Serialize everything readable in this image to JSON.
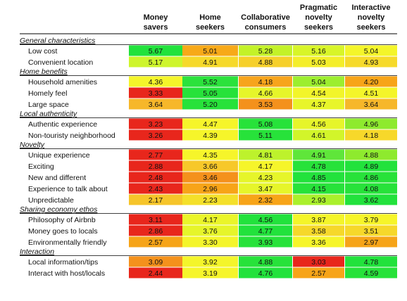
{
  "chart_data": {
    "type": "heatmap",
    "columns": [
      [
        "Money",
        "savers"
      ],
      [
        "Home",
        "seekers"
      ],
      [
        "Collaborative",
        "consumers"
      ],
      [
        "Pragmatic",
        "novelty",
        "seekers"
      ],
      [
        "Interactive",
        "novelty",
        "seekers"
      ]
    ],
    "groups": [
      {
        "title": "General characteristics",
        "rows": [
          {
            "label": "Low cost",
            "values": [
              "5.67",
              "5.01",
              "5.28",
              "5.16",
              "5.04"
            ],
            "colors": [
              "#22e23c",
              "#f7a918",
              "#c3f228",
              "#d8f528",
              "#f4f52a"
            ]
          },
          {
            "label": "Convenient location",
            "values": [
              "5.17",
              "4.91",
              "4.88",
              "5.03",
              "4.93"
            ],
            "colors": [
              "#cef52c",
              "#f6d92a",
              "#f6d02a",
              "#f4ee2a",
              "#f6da2a"
            ]
          }
        ]
      },
      {
        "title": "Home benefits",
        "rows": [
          {
            "label": "Household amenities",
            "values": [
              "4.36",
              "5.52",
              "4.18",
              "5.04",
              "4.20"
            ],
            "colors": [
              "#f4f52a",
              "#2be23c",
              "#f7a41c",
              "#9cee2e",
              "#f7a418"
            ]
          },
          {
            "label": "Homely feel",
            "values": [
              "3.33",
              "5.05",
              "4.66",
              "4.54",
              "4.51"
            ],
            "colors": [
              "#e8261c",
              "#27e23a",
              "#e6f52a",
              "#f2f52a",
              "#f4f52a"
            ]
          },
          {
            "label": "Large space",
            "values": [
              "3.64",
              "5.20",
              "3.53",
              "4.37",
              "3.64"
            ],
            "colors": [
              "#f6b72a",
              "#27e23a",
              "#f4911c",
              "#e8f52a",
              "#f6b72a"
            ]
          }
        ]
      },
      {
        "title": "Local authenticity",
        "rows": [
          {
            "label": "Authentic experience",
            "values": [
              "3.23",
              "4.47",
              "5.08",
              "4.56",
              "4.96"
            ],
            "colors": [
              "#e8261c",
              "#f6f52a",
              "#27e23a",
              "#e6f52a",
              "#8eea2e"
            ]
          },
          {
            "label": "Non-touristy neighborhood",
            "values": [
              "3.26",
              "4.39",
              "5.11",
              "4.61",
              "4.18"
            ],
            "colors": [
              "#e8261c",
              "#f6f52a",
              "#27e23a",
              "#d2f52a",
              "#f7d82a"
            ]
          }
        ]
      },
      {
        "title": "Novelty",
        "rows": [
          {
            "label": "Unique experience",
            "values": [
              "2.77",
              "4.35",
              "4.81",
              "4.91",
              "4.88"
            ],
            "colors": [
              "#e8261c",
              "#f6f52a",
              "#bdf22c",
              "#5fe63a",
              "#8eea2e"
            ]
          },
          {
            "label": "Exciting",
            "values": [
              "2.88",
              "3.66",
              "4.17",
              "4.78",
              "4.89"
            ],
            "colors": [
              "#e8261c",
              "#f7c82a",
              "#f6f52a",
              "#27e23a",
              "#22e23c"
            ]
          },
          {
            "label": "New and different",
            "values": [
              "2.48",
              "3.46",
              "4.23",
              "4.85",
              "4.86"
            ],
            "colors": [
              "#e8261c",
              "#f4911c",
              "#e6f52a",
              "#22e23c",
              "#27e23a"
            ]
          },
          {
            "label": "Experience to talk about",
            "values": [
              "2.43",
              "2.96",
              "3.47",
              "4.15",
              "4.08"
            ],
            "colors": [
              "#e8261c",
              "#f7a418",
              "#e6f52a",
              "#27e23a",
              "#27e23a"
            ]
          },
          {
            "label": "Unpredictable",
            "values": [
              "2.17",
              "2.23",
              "2.32",
              "2.93",
              "3.62"
            ],
            "colors": [
              "#f6c52a",
              "#f4e02a",
              "#f7a418",
              "#aaf02c",
              "#22e23c"
            ]
          }
        ]
      },
      {
        "title": "Sharing economy ethos",
        "rows": [
          {
            "label": "Philosophy of Airbnb",
            "values": [
              "3.11",
              "4.17",
              "4.56",
              "3.87",
              "3.79"
            ],
            "colors": [
              "#e8261c",
              "#eaf52a",
              "#22e23c",
              "#f4f52a",
              "#f6f52a"
            ]
          },
          {
            "label": "Money goes to locals",
            "values": [
              "2.86",
              "3.76",
              "4.77",
              "3.58",
              "3.51"
            ],
            "colors": [
              "#e8261c",
              "#e6f52a",
              "#22e23c",
              "#f6d82a",
              "#f6d82a"
            ]
          },
          {
            "label": "Environmentally friendly",
            "values": [
              "2.57",
              "3.30",
              "3.93",
              "3.36",
              "2.97"
            ],
            "colors": [
              "#f6a418",
              "#f4f52a",
              "#27e23a",
              "#f6f52a",
              "#f6a418"
            ]
          }
        ]
      },
      {
        "title": "Interaction",
        "rows": [
          {
            "label": "Local information/tips",
            "values": [
              "3.09",
              "3.92",
              "4.88",
              "3.03",
              "4.78"
            ],
            "colors": [
              "#f4911c",
              "#f4f52a",
              "#27e23a",
              "#e8261c",
              "#22e23c"
            ]
          },
          {
            "label": "Interact with host/locals",
            "values": [
              "2.44",
              "3.19",
              "4.76",
              "2.57",
              "4.59"
            ],
            "colors": [
              "#e8261c",
              "#f6f52a",
              "#22e23c",
              "#f7a418",
              "#27e23a"
            ]
          }
        ]
      }
    ]
  }
}
